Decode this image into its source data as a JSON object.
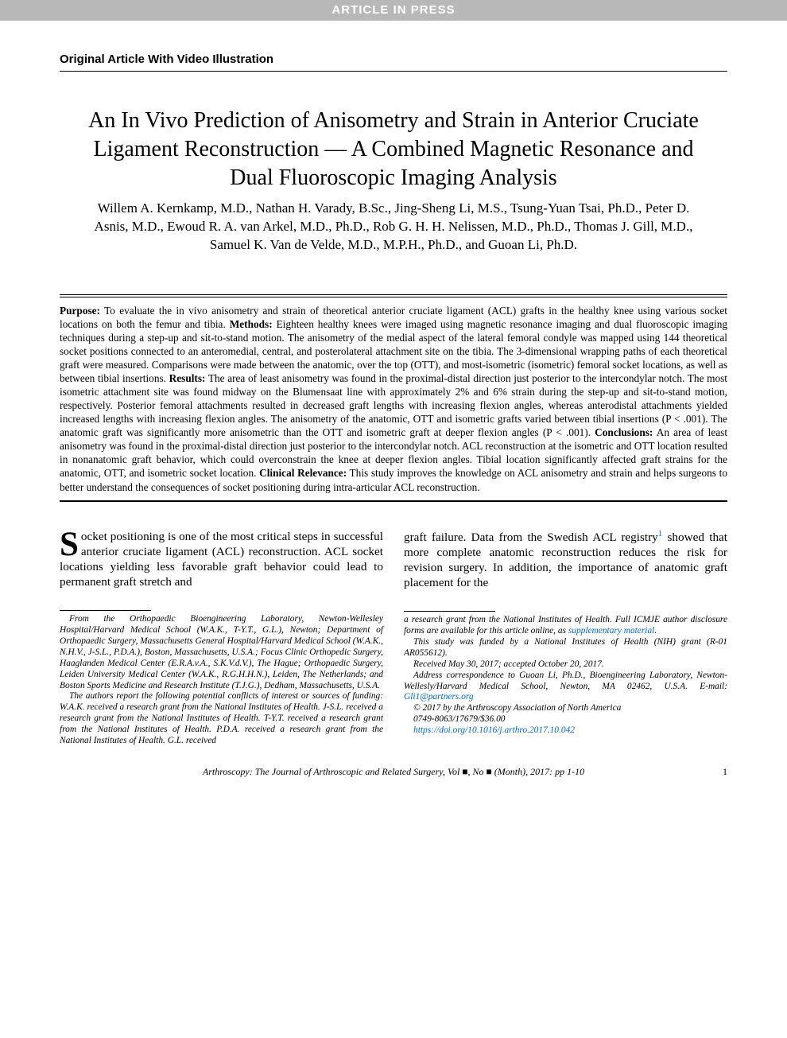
{
  "header_bar": "ARTICLE IN PRESS",
  "category": "Original Article With Video Illustration",
  "title": "An In Vivo Prediction of Anisometry and Strain in Anterior Cruciate Ligament Reconstruction — A Combined Magnetic Resonance and Dual Fluoroscopic Imaging Analysis",
  "authors": "Willem A. Kernkamp, M.D., Nathan H. Varady, B.Sc., Jing-Sheng Li, M.S., Tsung-Yuan Tsai, Ph.D., Peter D. Asnis, M.D., Ewoud R. A. van Arkel, M.D., Ph.D., Rob G. H. H. Nelissen, M.D., Ph.D., Thomas J. Gill, M.D., Samuel K. Van de Velde, M.D., M.P.H., Ph.D., and Guoan Li, Ph.D.",
  "abstract": {
    "purpose_label": "Purpose:",
    "purpose": " To evaluate the in vivo anisometry and strain of theoretical anterior cruciate ligament (ACL) grafts in the healthy knee using various socket locations on both the femur and tibia. ",
    "methods_label": "Methods:",
    "methods": " Eighteen healthy knees were imaged using magnetic resonance imaging and dual fluoroscopic imaging techniques during a step-up and sit-to-stand motion. The anisometry of the medial aspect of the lateral femoral condyle was mapped using 144 theoretical socket positions connected to an anteromedial, central, and posterolateral attachment site on the tibia. The 3-dimensional wrapping paths of each theoretical graft were measured. Comparisons were made between the anatomic, over the top (OTT), and most-isometric (isometric) femoral socket locations, as well as between tibial insertions. ",
    "results_label": "Results:",
    "results": " The area of least anisometry was found in the proximal-distal direction just posterior to the intercondylar notch. The most isometric attachment site was found midway on the Blumensaat line with approximately 2% and 6% strain during the step-up and sit-to-stand motion, respectively. Posterior femoral attachments resulted in decreased graft lengths with increasing flexion angles, whereas anterodistal attachments yielded increased lengths with increasing flexion angles. The anisometry of the anatomic, OTT and isometric grafts varied between tibial insertions (P < .001). The anatomic graft was significantly more anisometric than the OTT and isometric graft at deeper flexion angles (P < .001). ",
    "conclusions_label": "Conclusions:",
    "conclusions": " An area of least anisometry was found in the proximal-distal direction just posterior to the intercondylar notch. ACL reconstruction at the isometric and OTT location resulted in nonanatomic graft behavior, which could overconstrain the knee at deeper flexion angles. Tibial location significantly affected graft strains for the anatomic, OTT, and isometric socket location. ",
    "clinrel_label": "Clinical Relevance:",
    "clinrel": " This study improves the knowledge on ACL anisometry and strain and helps surgeons to better understand the consequences of socket positioning during intra-articular ACL reconstruction."
  },
  "body": {
    "left_first_letter": "S",
    "left": "ocket positioning is one of the most critical steps in successful anterior cruciate ligament (ACL) reconstruction. ACL socket locations yielding less favorable graft behavior could lead to permanent graft stretch and",
    "right_a": "graft failure. Data from the Swedish ACL registry",
    "right_sup": "1",
    "right_b": " showed that more complete anatomic reconstruction reduces the risk for revision surgery. In addition, the importance of anatomic graft placement for the"
  },
  "footnote_left": "From the Orthopaedic Bioengineering Laboratory, Newton-Wellesley Hospital/Harvard Medical School (W.A.K., T-Y.T., G.L.), Newton; Department of Orthopaedic Surgery, Massachusetts General Hospital/Harvard Medical School (W.A.K., N.H.V., J-S.L., P.D.A.), Boston, Massachusetts, U.S.A.; Focus Clinic Orthopedic Surgery, Haaglanden Medical Center (E.R.A.v.A., S.K.V.d.V.), The Hague; Orthopaedic Surgery, Leiden University Medical Center (W.A.K., R.G.H.H.N.), Leiden, The Netherlands; and Boston Sports Medicine and Research Institute (T.J.G.), Dedham, Massachusetts, U.S.A.",
  "footnote_left2": "The authors report the following potential conflicts of interest or sources of funding: W.A.K. received a research grant from the National Institutes of Health. J-S.L. received a research grant from the National Institutes of Health. T-Y.T. received a research grant from the National Institutes of Health. P.D.A. received a research grant from the National Institutes of Health. G.L. received",
  "footnote_right_a": "a research grant from the National Institutes of Health. Full ICMJE author disclosure forms are available for this article online, as ",
  "footnote_right_link1": "supplementary material",
  "footnote_right_period": ".",
  "footnote_right_b": "This study was funded by a National Institutes of Health (NIH) grant (R-01 AR055612).",
  "footnote_right_c": "Received May 30, 2017; accepted October 20, 2017.",
  "footnote_right_d": "Address correspondence to Guoan Li, Ph.D., Bioengineering Laboratory, Newton-Wellesly/Harvard Medical School, Newton, MA 02462, U.S.A. E-mail: ",
  "footnote_right_email": "Gli1@partners.org",
  "footnote_right_e": "© 2017 by the Arthroscopy Association of North America",
  "footnote_right_f": "0749-8063/17679/$36.00",
  "footnote_right_doi": "https://doi.org/10.1016/j.arthro.2017.10.042",
  "footer": {
    "journal": "Arthroscopy: The Journal of Arthroscopic and Related Surgery, Vol ■, No ■ (Month), 2017: pp 1-10",
    "page": "1"
  },
  "colors": {
    "header_bg": "#b8b8b8",
    "header_fg": "#ffffff",
    "link": "#0066cc",
    "text": "#000000"
  }
}
